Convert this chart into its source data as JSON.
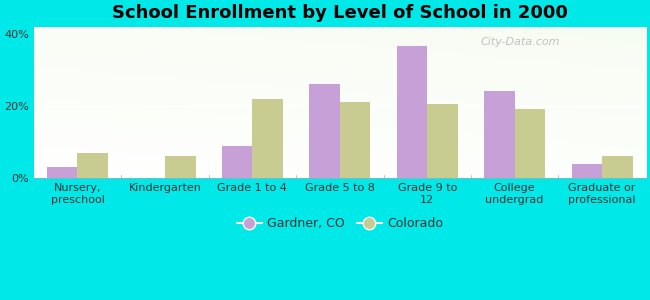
{
  "title": "School Enrollment by Level of School in 2000",
  "categories": [
    "Nursery,\npreschool",
    "Kindergarten",
    "Grade 1 to 4",
    "Grade 5 to 8",
    "Grade 9 to\n12",
    "College\nundergrad",
    "Graduate or\nprofessional"
  ],
  "gardner_values": [
    3.0,
    0.0,
    9.0,
    26.0,
    36.5,
    24.0,
    4.0
  ],
  "colorado_values": [
    7.0,
    6.0,
    22.0,
    21.0,
    20.5,
    19.0,
    6.0
  ],
  "gardner_color": "#c8a0d8",
  "colorado_color": "#c8cc90",
  "background_color": "#00e8e8",
  "ylim": [
    0,
    42
  ],
  "yticks": [
    0,
    20,
    40
  ],
  "ytick_labels": [
    "0%",
    "20%",
    "40%"
  ],
  "bar_width": 0.35,
  "legend_labels": [
    "Gardner, CO",
    "Colorado"
  ],
  "title_fontsize": 13,
  "tick_fontsize": 8,
  "legend_fontsize": 9,
  "watermark_text": "City-Data.com"
}
